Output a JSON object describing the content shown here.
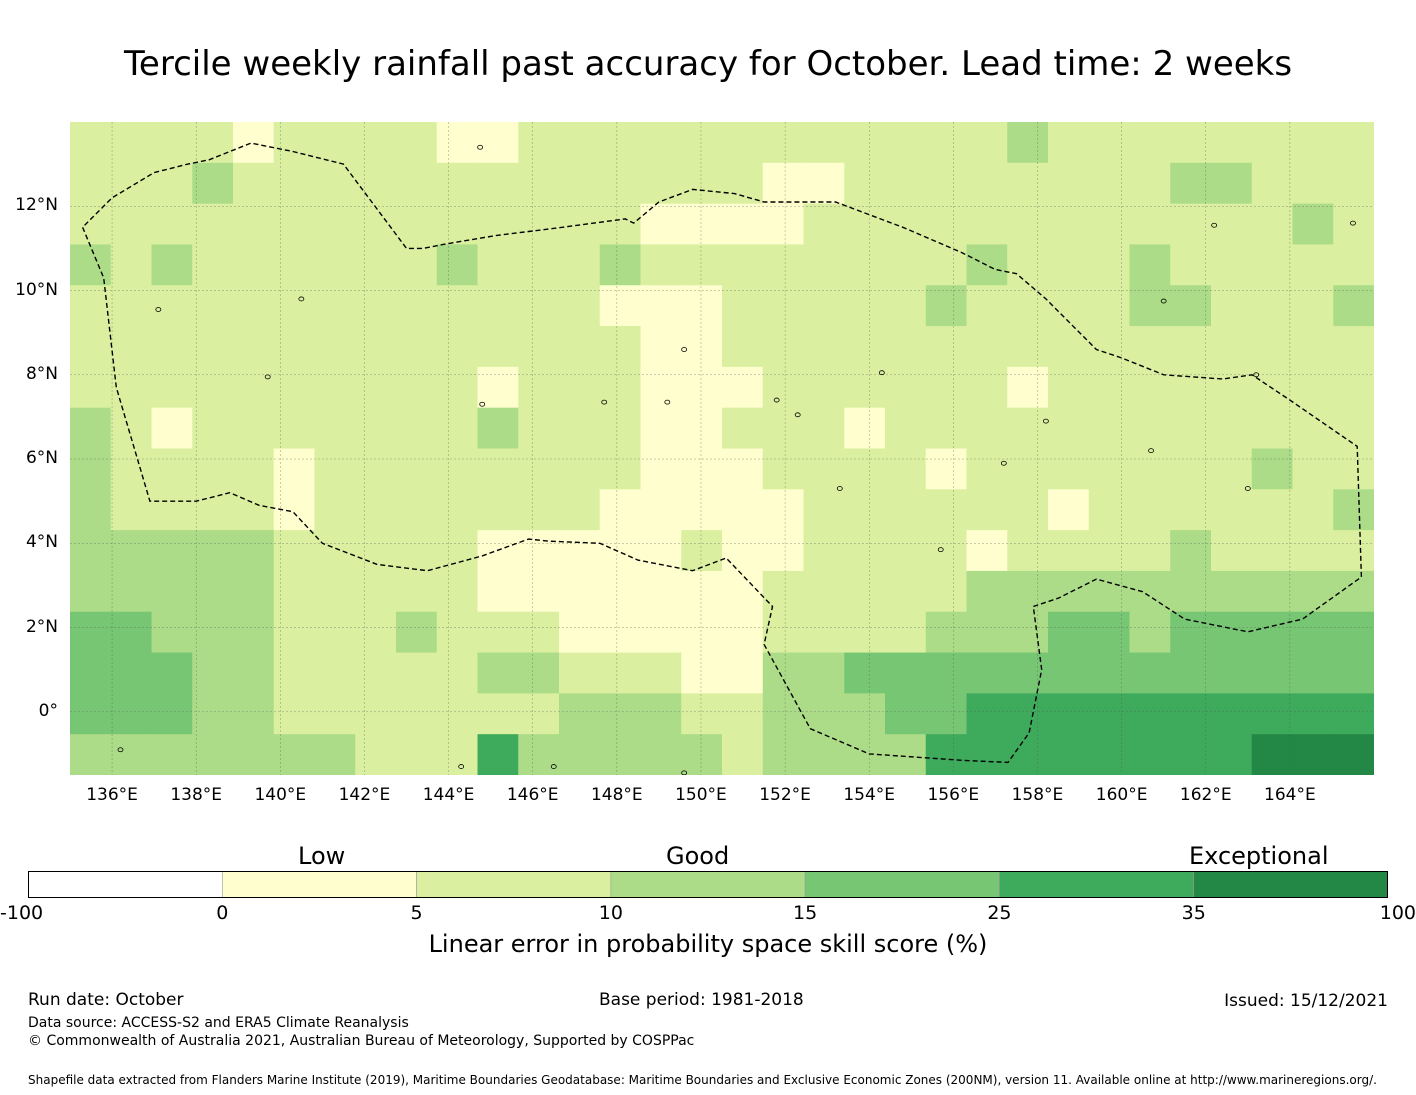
{
  "title": "Tercile weekly rainfall past accuracy for October. Lead time: 2 weeks",
  "map": {
    "lon_range": [
      135,
      166
    ],
    "lat_range": [
      -1.5,
      14
    ],
    "lat_labels": [
      {
        "lat": 12,
        "label": "12°N"
      },
      {
        "lat": 10,
        "label": "10°N"
      },
      {
        "lat": 8,
        "label": "8°N"
      },
      {
        "lat": 6,
        "label": "6°N"
      },
      {
        "lat": 4,
        "label": "4°N"
      },
      {
        "lat": 2,
        "label": "2°N"
      },
      {
        "lat": 0,
        "label": "0°"
      }
    ],
    "lon_labels": [
      {
        "lon": 136,
        "label": "136°E"
      },
      {
        "lon": 138,
        "label": "138°E"
      },
      {
        "lon": 140,
        "label": "140°E"
      },
      {
        "lon": 142,
        "label": "142°E"
      },
      {
        "lon": 144,
        "label": "144°E"
      },
      {
        "lon": 146,
        "label": "146°E"
      },
      {
        "lon": 148,
        "label": "148°E"
      },
      {
        "lon": 150,
        "label": "150°E"
      },
      {
        "lon": 152,
        "label": "152°E"
      },
      {
        "lon": 154,
        "label": "154°E"
      },
      {
        "lon": 156,
        "label": "156°E"
      },
      {
        "lon": 158,
        "label": "158°E"
      },
      {
        "lon": 160,
        "label": "160°E"
      },
      {
        "lon": 162,
        "label": "162°E"
      },
      {
        "lon": 164,
        "label": "164°E"
      }
    ],
    "boundary_label": "EEZ boundary",
    "boundary": [
      [
        135.3,
        11.5
      ],
      [
        135.8,
        10.3
      ],
      [
        136.1,
        7.7
      ],
      [
        136.9,
        5.0
      ],
      [
        138.0,
        5.0
      ],
      [
        138.8,
        5.2
      ],
      [
        139.5,
        4.9
      ],
      [
        140.3,
        4.75
      ],
      [
        141.0,
        4.0
      ],
      [
        142.3,
        3.5
      ],
      [
        143.5,
        3.35
      ],
      [
        144.8,
        3.7
      ],
      [
        145.9,
        4.1
      ],
      [
        146.4,
        4.05
      ],
      [
        147.6,
        4.0
      ],
      [
        148.5,
        3.6
      ],
      [
        149.8,
        3.35
      ],
      [
        150.6,
        3.65
      ],
      [
        151.7,
        2.5
      ],
      [
        151.5,
        1.6
      ],
      [
        152.6,
        -0.4
      ],
      [
        154.0,
        -1.0
      ],
      [
        156.2,
        -1.15
      ],
      [
        157.3,
        -1.2
      ],
      [
        157.8,
        -0.5
      ],
      [
        158.1,
        1.0
      ],
      [
        157.9,
        2.5
      ],
      [
        158.5,
        2.7
      ],
      [
        159.4,
        3.15
      ],
      [
        160.5,
        2.85
      ],
      [
        161.5,
        2.2
      ],
      [
        163.0,
        1.9
      ],
      [
        164.3,
        2.2
      ],
      [
        165.7,
        3.2
      ],
      [
        165.6,
        6.3
      ],
      [
        164.0,
        7.4
      ],
      [
        163.1,
        8.0
      ],
      [
        162.4,
        7.9
      ],
      [
        161.0,
        8.0
      ],
      [
        160.0,
        8.4
      ],
      [
        159.4,
        8.6
      ],
      [
        158.2,
        9.8
      ],
      [
        157.5,
        10.4
      ],
      [
        157.0,
        10.5
      ],
      [
        156.2,
        10.9
      ],
      [
        154.8,
        11.5
      ],
      [
        153.2,
        12.1
      ],
      [
        152.2,
        12.1
      ],
      [
        151.5,
        12.1
      ],
      [
        150.8,
        12.3
      ],
      [
        149.8,
        12.4
      ],
      [
        149.0,
        12.1
      ],
      [
        148.4,
        11.6
      ],
      [
        148.2,
        11.7
      ],
      [
        146.7,
        11.5
      ],
      [
        145.1,
        11.3
      ],
      [
        143.9,
        11.1
      ],
      [
        143.4,
        11.0
      ],
      [
        143.0,
        11.0
      ],
      [
        142.4,
        11.8
      ],
      [
        141.5,
        13.0
      ],
      [
        140.3,
        13.3
      ],
      [
        139.3,
        13.5
      ],
      [
        138.3,
        13.1
      ],
      [
        137.8,
        13.0
      ],
      [
        137.0,
        12.8
      ],
      [
        136.0,
        12.2
      ],
      [
        135.3,
        11.5
      ]
    ],
    "islands": [
      {
        "lon": 144.75,
        "lat": 13.4
      },
      {
        "lon": 137.1,
        "lat": 9.55
      },
      {
        "lon": 140.5,
        "lat": 9.8
      },
      {
        "lon": 139.7,
        "lat": 7.95
      },
      {
        "lon": 144.8,
        "lat": 7.3
      },
      {
        "lon": 147.7,
        "lat": 7.35
      },
      {
        "lon": 149.2,
        "lat": 7.35
      },
      {
        "lon": 149.6,
        "lat": 8.6
      },
      {
        "lon": 151.8,
        "lat": 7.4
      },
      {
        "lon": 152.3,
        "lat": 7.05
      },
      {
        "lon": 153.3,
        "lat": 5.3
      },
      {
        "lon": 154.3,
        "lat": 8.05
      },
      {
        "lon": 158.2,
        "lat": 6.9
      },
      {
        "lon": 157.2,
        "lat": 5.9
      },
      {
        "lon": 163.0,
        "lat": 5.3
      },
      {
        "lon": 163.2,
        "lat": 8.0
      },
      {
        "lon": 165.5,
        "lat": 11.6
      },
      {
        "lon": 162.2,
        "lat": 11.55
      },
      {
        "lon": 161.0,
        "lat": 9.75
      },
      {
        "lon": 160.7,
        "lat": 6.2
      },
      {
        "lon": 155.7,
        "lat": 3.85
      },
      {
        "lon": 136.2,
        "lat": -0.9
      },
      {
        "lon": 146.5,
        "lat": -1.3
      },
      {
        "lon": 149.6,
        "lat": -1.45
      },
      {
        "lon": 144.3,
        "lat": -1.3
      }
    ]
  },
  "chart_data": {
    "type": "heatmap",
    "description": "Gridded LEPS skill score classes, 32 columns (lon 135.0-166.0, west to east) x 16 rows (lat 14 to -1.5, north to south). Digits encode class index: 0 = -100 to 0, 1 = 0 to 5, 2 = 5 to 10, 3 = 10 to 15, 4 = 15 to 25, 5 = 25 to 35, 6 = 35 to 100",
    "x_range": [
      135.0,
      166.0
    ],
    "y_range": [
      14.0,
      -1.5
    ],
    "rows": [
      "22221222211222222222222322222222",
      "22232222222222222112222222233222",
      "22222222222222111122222222222232",
      "32322222232223222222223222322222",
      "22222222222221112222232222332223",
      "22222222222222112222222222222222",
      "22222222221222111222222122222222",
      "32122222223222112221222222222222",
      "32222122222222111222212222222322",
      "32222122222221111122222212222223",
      "33333222221111121122221222232222",
      "33333222221111111222223333333333",
      "44333222322211111222233344344444",
      "44433222223322211334444444444444",
      "44433222222233322333445555555555",
      "33333332225333332333355555555666"
    ],
    "classes": [
      {
        "label": "-100 to 0",
        "color": "#ffffff"
      },
      {
        "label": "0 to 5",
        "color": "#fefece"
      },
      {
        "label": "5 to 10",
        "color": "#daf0a0"
      },
      {
        "label": "10 to 15",
        "color": "#acdc88"
      },
      {
        "label": "15 to 25",
        "color": "#76c674"
      },
      {
        "label": "25 to 35",
        "color": "#3eaa5c"
      },
      {
        "label": "35 to 100",
        "color": "#238745"
      }
    ]
  },
  "legend": {
    "categories": [
      {
        "label": "Low",
        "position": "left"
      },
      {
        "label": "Good",
        "position": "center"
      },
      {
        "label": "Exceptional",
        "position": "right"
      }
    ],
    "ticks": [
      "-100",
      "0",
      "5",
      "10",
      "15",
      "25",
      "35",
      "100"
    ],
    "title": "Linear error in probability space skill score (%)"
  },
  "footer": {
    "run_date": "Run date: October",
    "base_period": "Base period: 1981-2018",
    "issued": "Issued: 15/12/2021",
    "data_source": "Data source: ACCESS-S2 and ERA5 Climate Reanalysis",
    "copyright": "© Commonwealth of Australia 2021, Australian Bureau of Meteorology, Supported by COSPPac",
    "shapefile_credit": "Shapefile data extracted from Flanders Marine Institute (2019), Maritime Boundaries Geodatabase: Maritime Boundaries and Exclusive Economic Zones (200NM), version 11. Available online at http://www.marineregions.org/."
  }
}
